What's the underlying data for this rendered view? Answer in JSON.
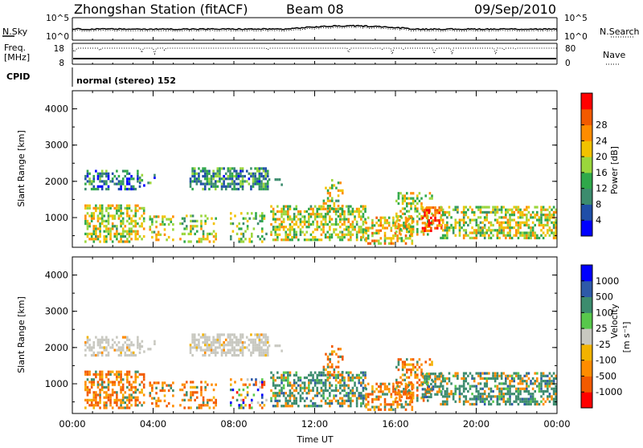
{
  "header": {
    "station": "Zhongshan Station (fitACF)",
    "beam": "Beam 08",
    "date": "09/Sep/2010"
  },
  "summary": {
    "nsky_label": "N.Sky",
    "nsearch_label": "N.Search",
    "nsky_ticks": [
      "10^5",
      "10^0"
    ],
    "nsearch_ticks": [
      "10^5",
      "10^0"
    ],
    "freq_label_1": "Freq.",
    "freq_label_2": "[MHz]",
    "freq_ticks": [
      "18",
      "8"
    ],
    "nave_label": "Nave",
    "nave_ticks": [
      "80",
      "0"
    ],
    "cpid_label": "CPID",
    "cpid_value": "normal (stereo) 152"
  },
  "colors": {
    "power_scale": [
      "#0000ff",
      "#1f4ea8",
      "#3c8c6e",
      "#2fa84a",
      "#9ad63c",
      "#f2c200",
      "#ff8c00",
      "#f25a00",
      "#ff0000"
    ],
    "velocity_scale": [
      "#ff0000",
      "#f25a00",
      "#ff8c00",
      "#f2b300",
      "#c8c8c0",
      "#58c84c",
      "#3c8c6e",
      "#2e5aa8",
      "#0000ff"
    ]
  },
  "chart_data": [
    {
      "type": "heatmap",
      "title": "",
      "ylabel": "Slant Range [km]",
      "xlabel": "",
      "x_ticks": [
        "00:00",
        "04:00",
        "08:00",
        "12:00",
        "16:00",
        "20:00",
        "00:00"
      ],
      "xlim_hours": [
        0,
        24
      ],
      "y_ticks": [
        "1000",
        "2000",
        "3000",
        "4000"
      ],
      "ylim": [
        180,
        4500
      ],
      "colorbar_label": "Power [dB]",
      "colorbar_ticks": [
        "4",
        "8",
        "12",
        "16",
        "20",
        "24",
        "28"
      ],
      "colorbar_range": [
        0,
        32
      ]
    },
    {
      "type": "heatmap",
      "title": "",
      "ylabel": "Slant Range [km]",
      "xlabel": "Time UT",
      "x_ticks": [
        "00:00",
        "04:00",
        "08:00",
        "12:00",
        "16:00",
        "20:00",
        "00:00"
      ],
      "xlim_hours": [
        0,
        24
      ],
      "y_ticks": [
        "1000",
        "2000",
        "3000",
        "4000"
      ],
      "ylim": [
        180,
        4500
      ],
      "colorbar_label": "Velocity",
      "colorbar_unit": "[m s⁻¹]",
      "colorbar_ticks": [
        "1000",
        "500",
        "100",
        "25",
        "-25",
        "-100",
        "-500",
        "-1000"
      ]
    }
  ]
}
